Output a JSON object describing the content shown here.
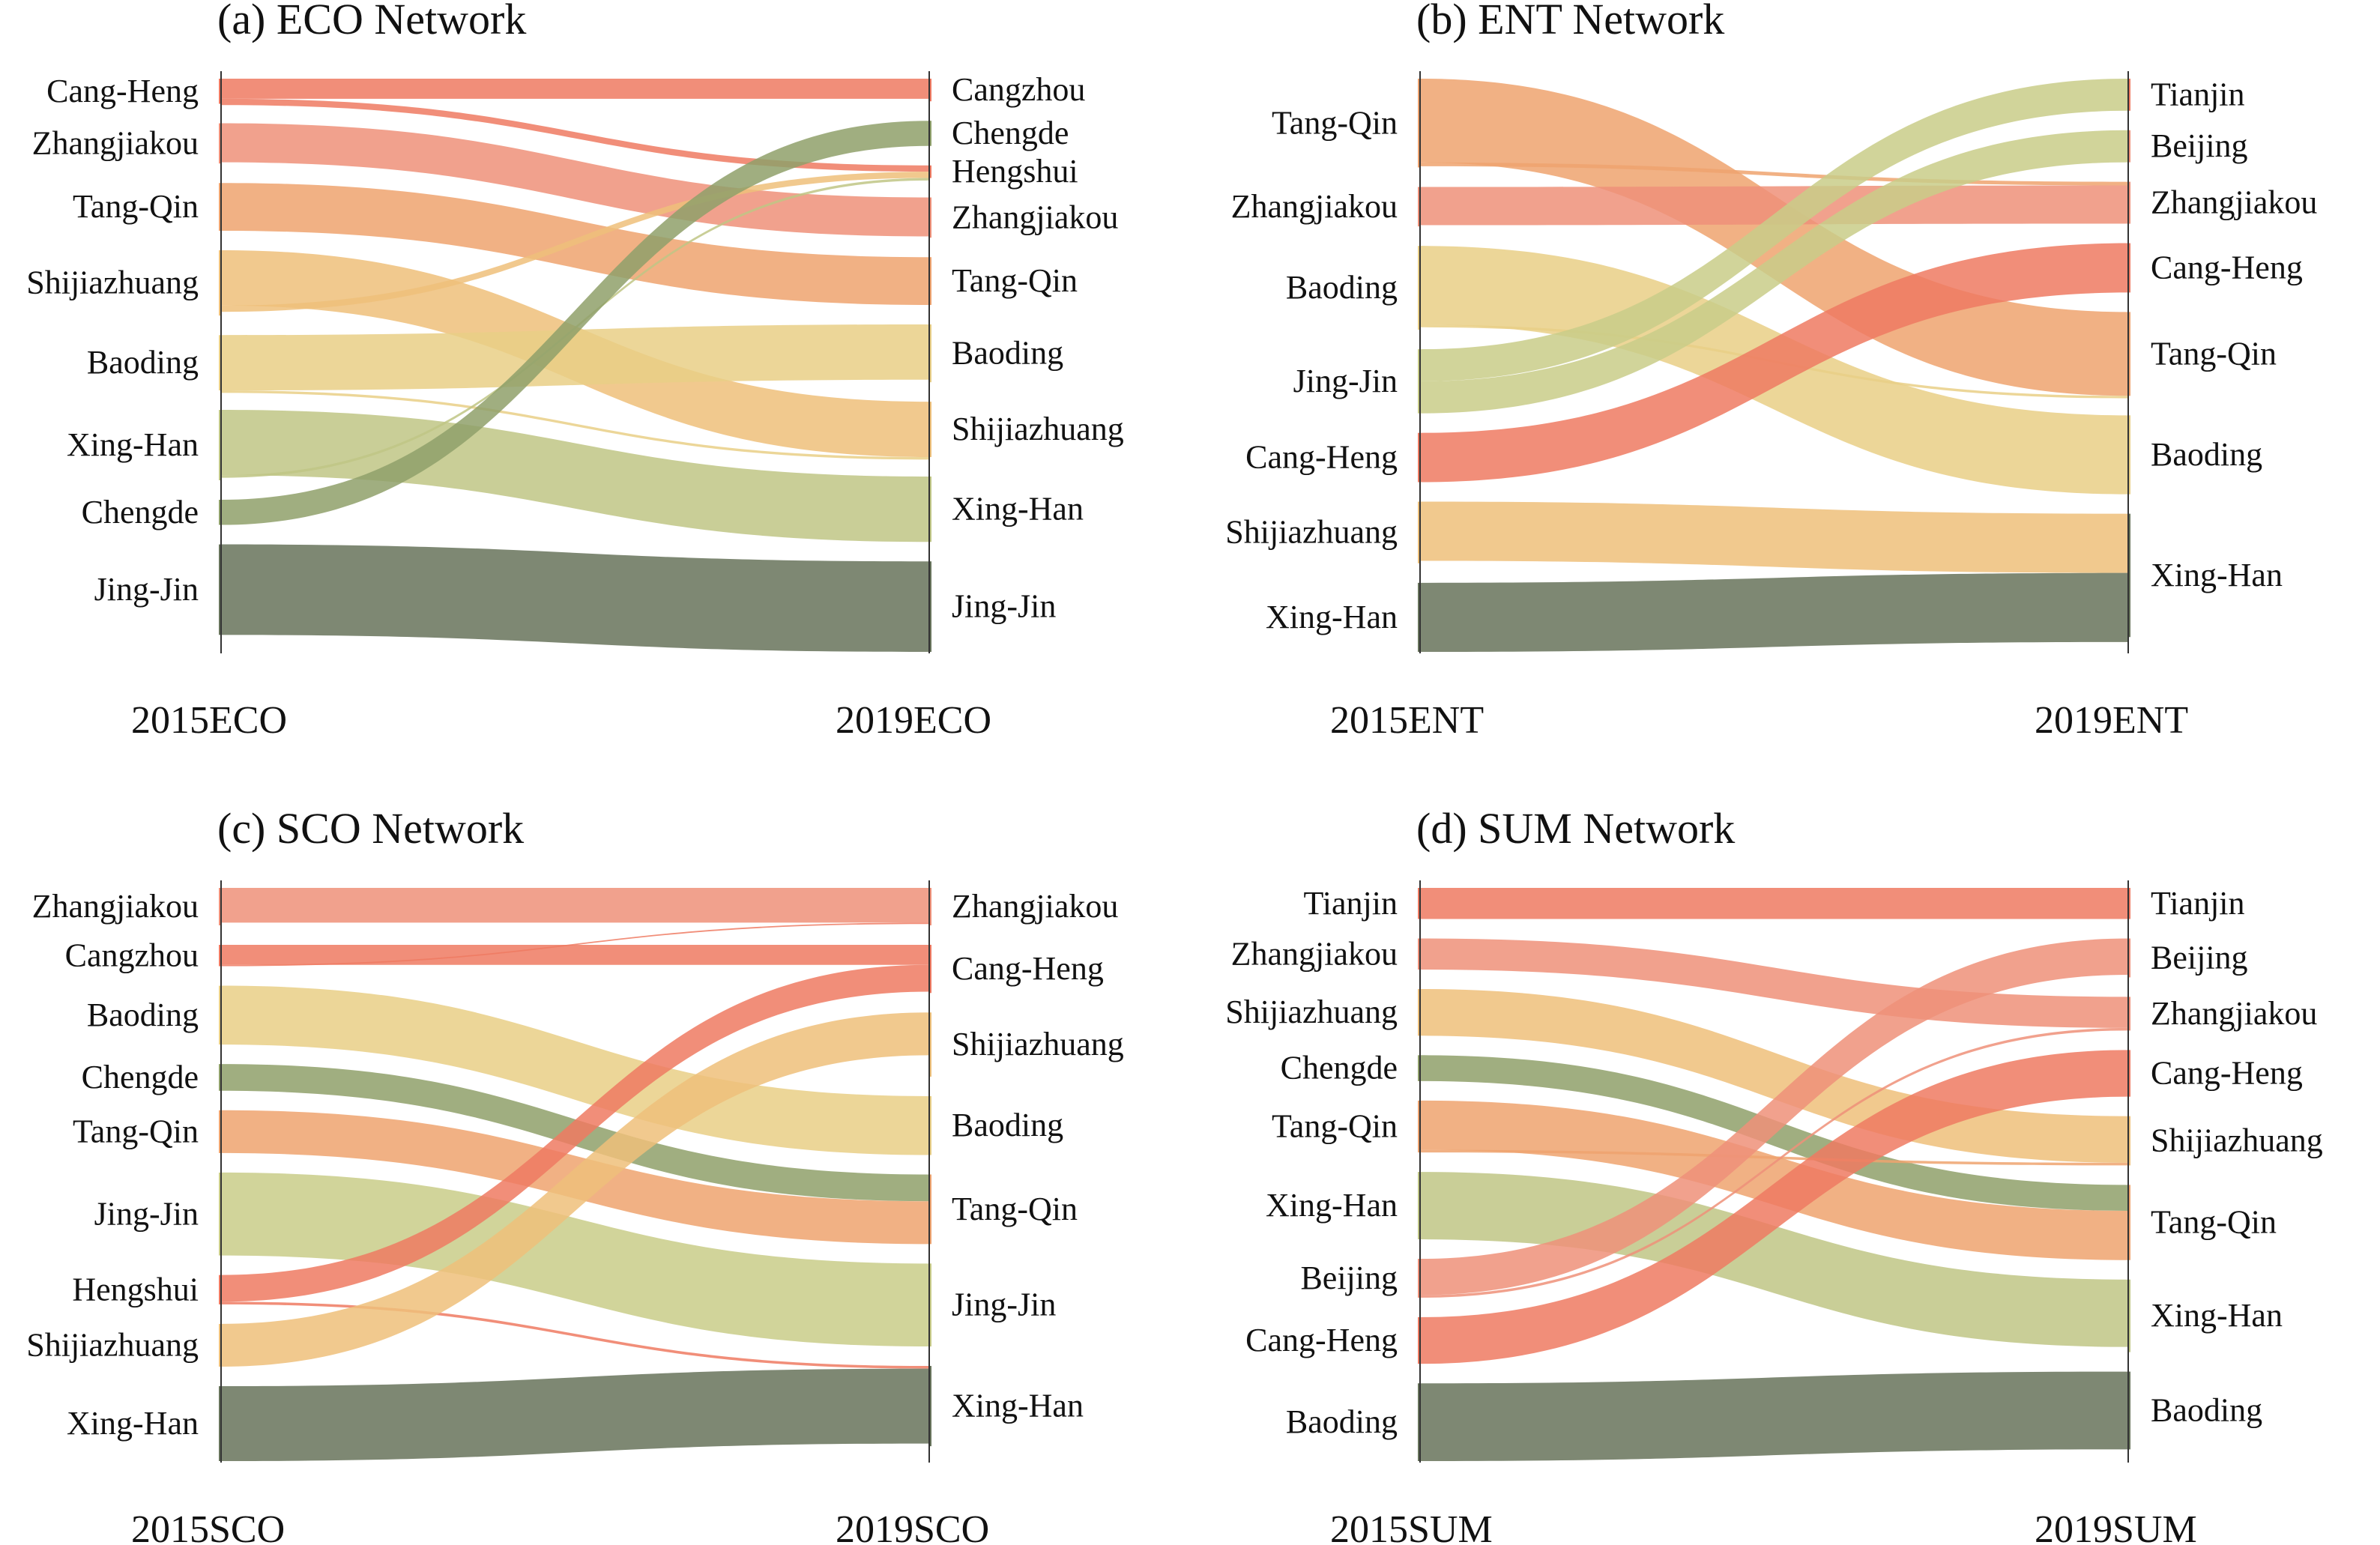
{
  "chart_data": [
    {
      "type": "sankey",
      "title": "(a) ECO Network",
      "left_axis_label": "2015ECO",
      "right_axis_label": "2019ECO",
      "left_nodes": [
        {
          "name": "Cang-Heng",
          "value": 1.0
        },
        {
          "name": "Zhangjiakou",
          "value": 1.6
        },
        {
          "name": "Tang-Qin",
          "value": 1.9
        },
        {
          "name": "Shijiazhuang",
          "value": 2.6
        },
        {
          "name": "Baoding",
          "value": 2.2
        },
        {
          "name": "Xing-Han",
          "value": 2.8
        },
        {
          "name": "Chengde",
          "value": 1.0
        },
        {
          "name": "Jing-Jin",
          "value": 3.6
        }
      ],
      "right_nodes": [
        {
          "name": "Cangzhou",
          "value": 0.9
        },
        {
          "name": "Chengde",
          "value": 1.0
        },
        {
          "name": "Hengshui",
          "value": 0.5
        },
        {
          "name": "Zhangjiakou",
          "value": 1.6
        },
        {
          "name": "Tang-Qin",
          "value": 1.9
        },
        {
          "name": "Baoding",
          "value": 2.3
        },
        {
          "name": "Shijiazhuang",
          "value": 2.2
        },
        {
          "name": "Xing-Han",
          "value": 2.6
        },
        {
          "name": "Jing-Jin",
          "value": 3.6
        }
      ],
      "flows": [
        {
          "from": "Cang-Heng",
          "to": "Cangzhou",
          "value": 0.8
        },
        {
          "from": "Cang-Heng",
          "to": "Hengshui",
          "value": 0.25
        },
        {
          "from": "Zhangjiakou",
          "to": "Zhangjiakou",
          "value": 1.55
        },
        {
          "from": "Tang-Qin",
          "to": "Tang-Qin",
          "value": 1.9
        },
        {
          "from": "Shijiazhuang",
          "to": "Shijiazhuang",
          "value": 2.2
        },
        {
          "from": "Shijiazhuang",
          "to": "Hengshui",
          "value": 0.25
        },
        {
          "from": "Baoding",
          "to": "Baoding",
          "value": 2.2
        },
        {
          "from": "Baoding",
          "to": "Shijiazhuang",
          "value": 0.1
        },
        {
          "from": "Xing-Han",
          "to": "Xing-Han",
          "value": 2.6
        },
        {
          "from": "Xing-Han",
          "to": "Hengshui",
          "value": 0.1
        },
        {
          "from": "Chengde",
          "to": "Chengde",
          "value": 1.0
        },
        {
          "from": "Jing-Jin",
          "to": "Jing-Jin",
          "value": 3.6
        }
      ]
    },
    {
      "type": "sankey",
      "title": "(b) ENT Network",
      "left_axis_label": "2015ENT",
      "right_axis_label": "2019ENT",
      "left_nodes": [
        {
          "name": "Tang-Qin",
          "value": 3.6
        },
        {
          "name": "Zhangjiakou",
          "value": 1.6
        },
        {
          "name": "Baoding",
          "value": 3.4
        },
        {
          "name": "Jing-Jin",
          "value": 2.6
        },
        {
          "name": "Cang-Heng",
          "value": 2.0
        },
        {
          "name": "Shijiazhuang",
          "value": 2.5
        },
        {
          "name": "Xing-Han",
          "value": 2.8
        }
      ],
      "right_nodes": [
        {
          "name": "Tianjin",
          "value": 1.3
        },
        {
          "name": "Beijing",
          "value": 1.3
        },
        {
          "name": "Zhangjiakou",
          "value": 1.7
        },
        {
          "name": "Cang-Heng",
          "value": 2.0
        },
        {
          "name": "Tang-Qin",
          "value": 3.4
        },
        {
          "name": "Baoding",
          "value": 3.2
        },
        {
          "name": "Xing-Han",
          "value": 5.0
        }
      ],
      "flows": [
        {
          "from": "Tang-Qin",
          "to": "Tang-Qin",
          "value": 3.4
        },
        {
          "from": "Tang-Qin",
          "to": "Zhangjiakou",
          "value": 0.15
        },
        {
          "from": "Zhangjiakou",
          "to": "Zhangjiakou",
          "value": 1.55
        },
        {
          "from": "Baoding",
          "to": "Baoding",
          "value": 3.2
        },
        {
          "from": "Baoding",
          "to": "Tang-Qin",
          "value": 0.1
        },
        {
          "from": "Jing-Jin",
          "to": "Tianjin",
          "value": 1.3
        },
        {
          "from": "Jing-Jin",
          "to": "Beijing",
          "value": 1.3
        },
        {
          "from": "Cang-Heng",
          "to": "Cang-Heng",
          "value": 2.0
        },
        {
          "from": "Shijiazhuang",
          "to": "Xing-Han",
          "value": 2.4
        },
        {
          "from": "Xing-Han",
          "to": "Xing-Han",
          "value": 2.8
        }
      ]
    },
    {
      "type": "sankey",
      "title": "(c) SCO Network",
      "left_axis_label": "2015SCO",
      "right_axis_label": "2019SCO",
      "left_nodes": [
        {
          "name": "Zhangjiakou",
          "value": 1.4
        },
        {
          "name": "Cangzhou",
          "value": 0.8
        },
        {
          "name": "Baoding",
          "value": 2.2
        },
        {
          "name": "Chengde",
          "value": 1.0
        },
        {
          "name": "Tang-Qin",
          "value": 1.6
        },
        {
          "name": "Jing-Jin",
          "value": 3.1
        },
        {
          "name": "Hengshui",
          "value": 1.1
        },
        {
          "name": "Shijiazhuang",
          "value": 1.6
        },
        {
          "name": "Xing-Han",
          "value": 2.8
        }
      ],
      "right_nodes": [
        {
          "name": "Zhangjiakou",
          "value": 1.4
        },
        {
          "name": "Cang-Heng",
          "value": 1.8
        },
        {
          "name": "Shijiazhuang",
          "value": 2.4
        },
        {
          "name": "Baoding",
          "value": 2.2
        },
        {
          "name": "Tang-Qin",
          "value": 2.6
        },
        {
          "name": "Jing-Jin",
          "value": 3.1
        },
        {
          "name": "Xing-Han",
          "value": 3.0
        }
      ],
      "flows": [
        {
          "from": "Zhangjiakou",
          "to": "Zhangjiakou",
          "value": 1.3
        },
        {
          "from": "Cangzhou",
          "to": "Cang-Heng",
          "value": 0.75
        },
        {
          "from": "Cangzhou",
          "to": "Zhangjiakou",
          "value": 0.05
        },
        {
          "from": "Baoding",
          "to": "Baoding",
          "value": 2.2
        },
        {
          "from": "Chengde",
          "to": "Tang-Qin",
          "value": 1.0
        },
        {
          "from": "Tang-Qin",
          "to": "Tang-Qin",
          "value": 1.6
        },
        {
          "from": "Jing-Jin",
          "to": "Jing-Jin",
          "value": 3.1
        },
        {
          "from": "Hengshui",
          "to": "Cang-Heng",
          "value": 1.0
        },
        {
          "from": "Hengshui",
          "to": "Xing-Han",
          "value": 0.1
        },
        {
          "from": "Shijiazhuang",
          "to": "Shijiazhuang",
          "value": 1.6
        },
        {
          "from": "Xing-Han",
          "to": "Xing-Han",
          "value": 2.8
        }
      ]
    },
    {
      "type": "sankey",
      "title": "(d) SUM Network",
      "left_axis_label": "2015SUM",
      "right_axis_label": "2019SUM",
      "left_nodes": [
        {
          "name": "Tianjin",
          "value": 1.2
        },
        {
          "name": "Zhangjiakou",
          "value": 1.2
        },
        {
          "name": "Shijiazhuang",
          "value": 1.8
        },
        {
          "name": "Chengde",
          "value": 1.0
        },
        {
          "name": "Tang-Qin",
          "value": 2.0
        },
        {
          "name": "Xing-Han",
          "value": 2.6
        },
        {
          "name": "Beijing",
          "value": 1.5
        },
        {
          "name": "Cang-Heng",
          "value": 1.8
        },
        {
          "name": "Baoding",
          "value": 3.0
        }
      ],
      "right_nodes": [
        {
          "name": "Tianjin",
          "value": 1.2
        },
        {
          "name": "Beijing",
          "value": 1.5
        },
        {
          "name": "Zhangjiakou",
          "value": 1.3
        },
        {
          "name": "Cang-Heng",
          "value": 1.8
        },
        {
          "name": "Shijiazhuang",
          "value": 1.9
        },
        {
          "name": "Tang-Qin",
          "value": 2.9
        },
        {
          "name": "Xing-Han",
          "value": 2.8
        },
        {
          "name": "Baoding",
          "value": 3.0
        }
      ],
      "flows": [
        {
          "from": "Tianjin",
          "to": "Tianjin",
          "value": 1.2
        },
        {
          "from": "Zhangjiakou",
          "to": "Zhangjiakou",
          "value": 1.2
        },
        {
          "from": "Shijiazhuang",
          "to": "Shijiazhuang",
          "value": 1.8
        },
        {
          "from": "Chengde",
          "to": "Tang-Qin",
          "value": 1.0
        },
        {
          "from": "Tang-Qin",
          "to": "Tang-Qin",
          "value": 1.9
        },
        {
          "from": "Tang-Qin",
          "to": "Shijiazhuang",
          "value": 0.1
        },
        {
          "from": "Xing-Han",
          "to": "Xing-Han",
          "value": 2.6
        },
        {
          "from": "Beijing",
          "to": "Beijing",
          "value": 1.4
        },
        {
          "from": "Beijing",
          "to": "Zhangjiakou",
          "value": 0.1
        },
        {
          "from": "Cang-Heng",
          "to": "Cang-Heng",
          "value": 1.8
        },
        {
          "from": "Baoding",
          "to": "Baoding",
          "value": 3.0
        }
      ]
    }
  ],
  "colors": {
    "Cang-Heng": "#ef7a62",
    "Cangzhou": "#ef7a62",
    "Hengshui": "#ef7a62",
    "Tianjin": "#ef7a62",
    "Zhangjiakou": "#ef9079",
    "Tang-Qin": "#eea36f",
    "Beijing": "#ef9079",
    "Shijiazhuang": "#eec07a",
    "Baoding": "#e9cf86",
    "Jing-Jin": "#c9cc88",
    "Xing-Han": "#bfc685",
    "Chengde": "#8fa06a",
    "dark": "#67735b"
  }
}
